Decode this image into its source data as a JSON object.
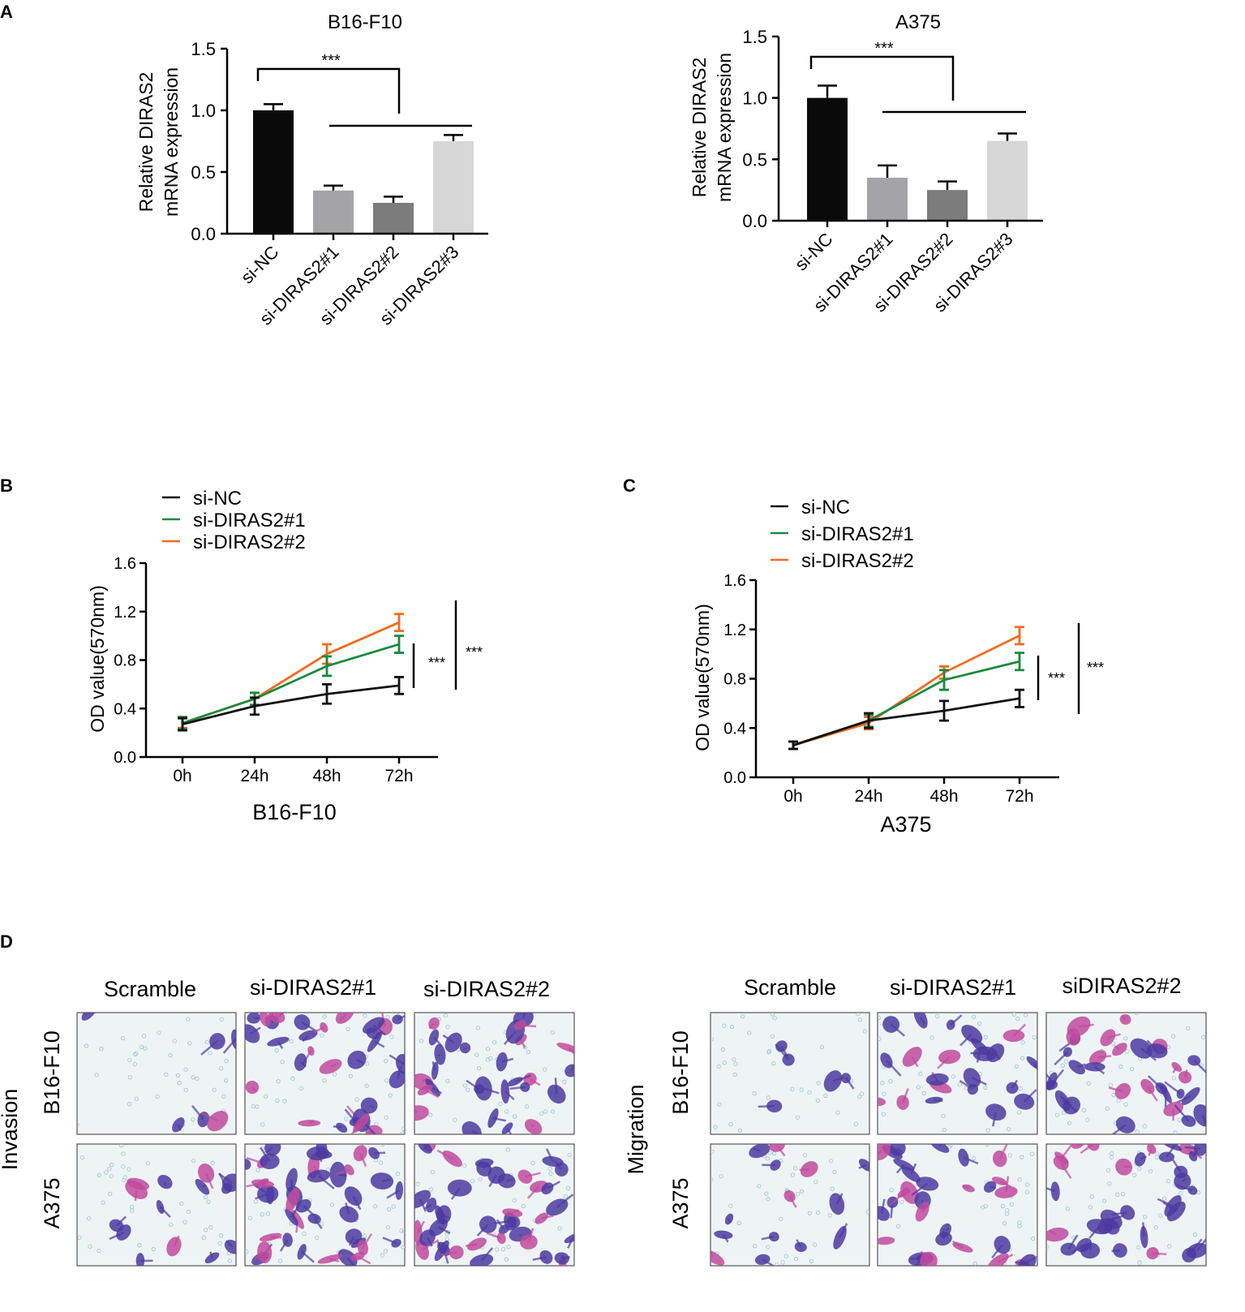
{
  "panel_labels": {
    "a": "A",
    "b": "B",
    "c": "C",
    "d": "D"
  },
  "colors": {
    "bar_si_nc": "#0a0a0a",
    "bar_sid1": "#a3a3a8",
    "bar_sid2": "#7c7c7c",
    "bar_sid3": "#d7d7d7",
    "line_si_nc": "#111111",
    "line_sid1": "#1a8a3f",
    "line_sid2": "#f26b21",
    "stain_dark": "#4c3aa0",
    "stain_pink": "#c04a9e",
    "bg_light": "#eef4f6"
  },
  "chart_data": [
    {
      "id": "A-left",
      "type": "bar",
      "title": "B16-F10",
      "ylabel_line1": "Relative DIRAS2",
      "ylabel_line2": "mRNA expression",
      "categories": [
        "si-NC",
        "si-DIRAS2#1",
        "si-DIRAS2#2",
        "si-DIRAS2#3"
      ],
      "values": [
        1.0,
        0.35,
        0.25,
        0.75
      ],
      "errors": [
        0.05,
        0.04,
        0.05,
        0.05
      ],
      "ylim": [
        0,
        1.5
      ],
      "yticks": [
        "0.0",
        "0.5",
        "1.0",
        "1.5"
      ],
      "significance": "***"
    },
    {
      "id": "A-right",
      "type": "bar",
      "title": "A375",
      "ylabel_line1": "Relative DIRAS2",
      "ylabel_line2": "mRNA expression",
      "categories": [
        "si-NC",
        "si-DIRAS2#1",
        "si-DIRAS2#2",
        "si-DIRAS2#3"
      ],
      "values": [
        1.0,
        0.35,
        0.25,
        0.65
      ],
      "errors": [
        0.1,
        0.1,
        0.07,
        0.06
      ],
      "ylim": [
        0,
        1.5
      ],
      "yticks": [
        "0.0",
        "0.5",
        "1.0",
        "1.5"
      ],
      "significance": "***"
    },
    {
      "id": "B",
      "type": "line",
      "xlabel": "B16-F10",
      "ylabel": "OD value(570nm)",
      "categories": [
        "0h",
        "24h",
        "48h",
        "72h"
      ],
      "ylim": [
        0,
        1.6
      ],
      "yticks": [
        "0.0",
        "0.4",
        "0.8",
        "1.2",
        "1.6"
      ],
      "series": [
        {
          "name": "si-NC",
          "values": [
            0.27,
            0.42,
            0.52,
            0.59
          ],
          "errors": [
            0.05,
            0.07,
            0.08,
            0.07
          ]
        },
        {
          "name": "si-DIRAS2#1",
          "values": [
            0.28,
            0.48,
            0.75,
            0.93
          ],
          "errors": [
            0.05,
            0.05,
            0.08,
            0.07
          ]
        },
        {
          "name": "si-DIRAS2#2",
          "values": [
            0.28,
            0.48,
            0.85,
            1.11
          ],
          "errors": [
            0.04,
            0.05,
            0.08,
            0.07
          ]
        }
      ],
      "sig_labels": [
        "***",
        "***"
      ]
    },
    {
      "id": "C",
      "type": "line",
      "xlabel": "A375",
      "ylabel": "OD value(570nm)",
      "categories": [
        "0h",
        "24h",
        "48h",
        "72h"
      ],
      "ylim": [
        0,
        1.6
      ],
      "yticks": [
        "0.0",
        "0.4",
        "0.8",
        "1.2",
        "1.6"
      ],
      "series": [
        {
          "name": "si-NC",
          "values": [
            0.26,
            0.46,
            0.54,
            0.64
          ],
          "errors": [
            0.03,
            0.06,
            0.08,
            0.07
          ]
        },
        {
          "name": "si-DIRAS2#1",
          "values": [
            0.26,
            0.46,
            0.79,
            0.94
          ],
          "errors": [
            0.03,
            0.05,
            0.08,
            0.07
          ]
        },
        {
          "name": "si-DIRAS2#2",
          "values": [
            0.26,
            0.44,
            0.85,
            1.15
          ],
          "errors": [
            0.03,
            0.05,
            0.05,
            0.07
          ]
        }
      ],
      "sig_labels": [
        "***",
        "***"
      ]
    }
  ],
  "panel_d": {
    "left": {
      "columns": [
        "Scramble",
        "si-DIRAS2#1",
        "si-DIRAS2#2"
      ],
      "rows": [
        "B16-F10",
        "A375"
      ],
      "group_label": "Invasion"
    },
    "right": {
      "columns": [
        "Scramble",
        "si-DIRAS2#1",
        "siDIRAS2#2"
      ],
      "rows": [
        "B16-F10",
        "A375"
      ],
      "group_label": "Migration"
    }
  }
}
